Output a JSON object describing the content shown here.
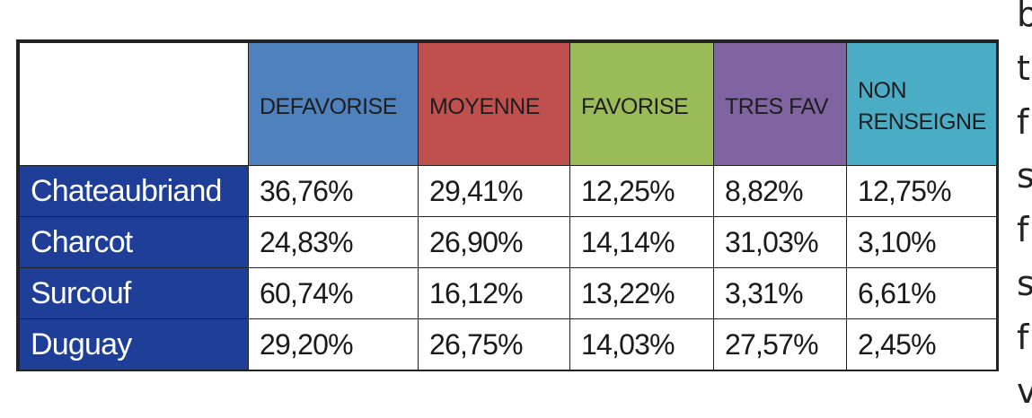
{
  "table": {
    "columns": [
      {
        "label": "DEFAVORISE",
        "color": "#4f81bd"
      },
      {
        "label": "MOYENNE",
        "color": "#c0504d"
      },
      {
        "label": "FAVORISE",
        "color": "#9bbb59"
      },
      {
        "label": "TRES FAV",
        "color": "#8064a2"
      },
      {
        "label": "NON\nRENSEIGNE",
        "color": "#4bacc6"
      }
    ],
    "row_header_color": "#1f3e97",
    "rows": [
      {
        "label": "Chateaubriand",
        "values": [
          "36,76%",
          "29,41%",
          "12,25%",
          "8,82%",
          "12,75%"
        ]
      },
      {
        "label": "Charcot",
        "values": [
          "24,83%",
          "26,90%",
          "14,14%",
          "31,03%",
          "3,10%"
        ]
      },
      {
        "label": "Surcouf",
        "values": [
          "60,74%",
          "16,12%",
          "13,22%",
          "3,31%",
          "6,61%"
        ]
      },
      {
        "label": "Duguay",
        "values": [
          "29,20%",
          "26,75%",
          "14,03%",
          "27,57%",
          "2,45%"
        ]
      }
    ]
  },
  "side_text": [
    "b",
    "t",
    "f",
    "s",
    "f",
    "s",
    "f",
    "v"
  ]
}
